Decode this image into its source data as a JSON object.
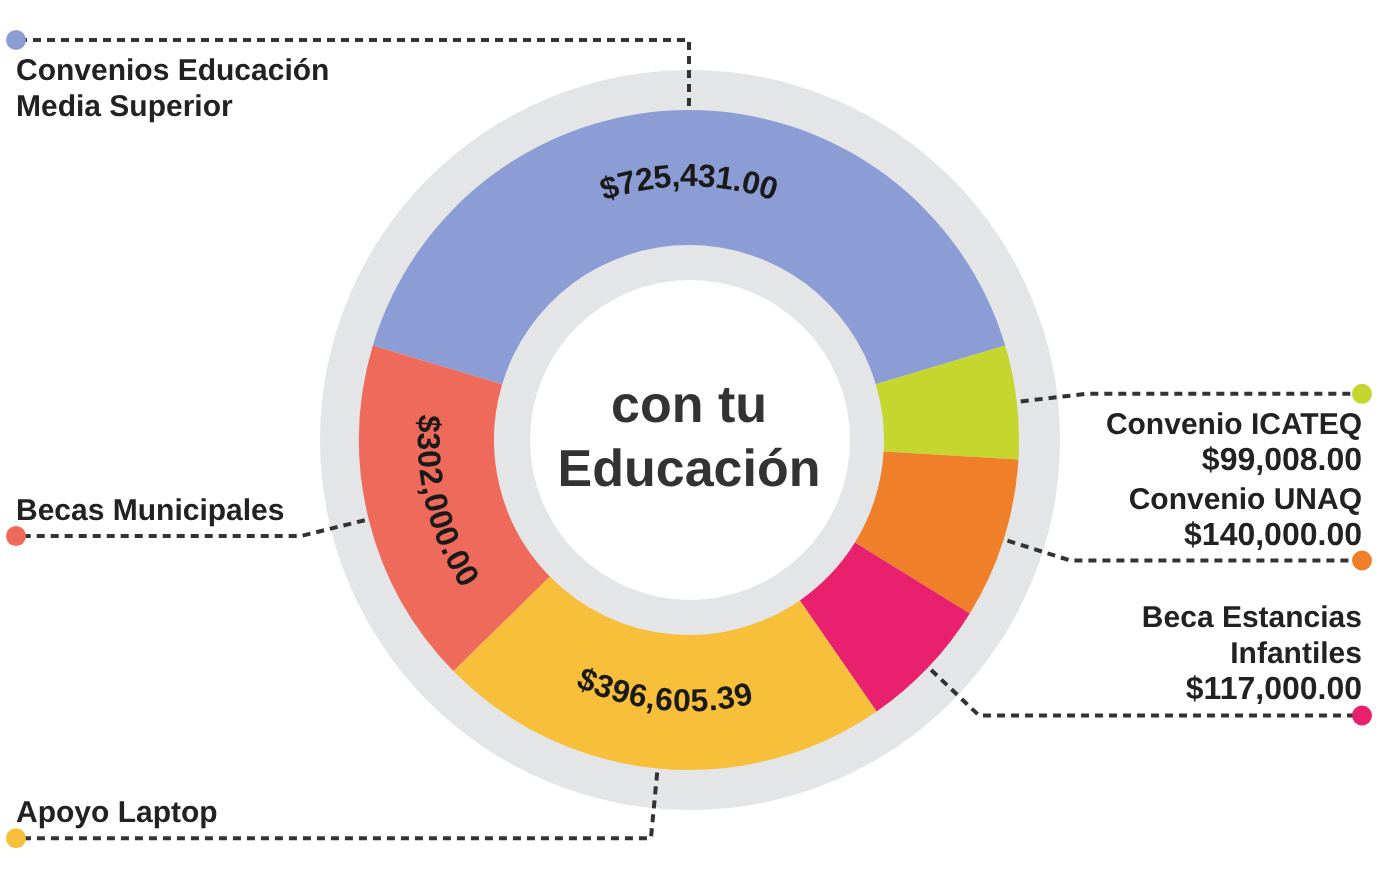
{
  "chart_data": {
    "type": "donut",
    "title": "con tu Educación",
    "categories": [
      "Convenios Educación Media Superior",
      "Convenio ICATEQ",
      "Convenio UNAQ",
      "Beca Estancias Infantiles",
      "Apoyo Laptop",
      "Becas Municipales"
    ],
    "values": [
      725431.0,
      99008.0,
      140000.0,
      117000.0,
      396605.39,
      302000.0
    ],
    "value_labels": [
      "$725,431.00",
      "$99,008.00",
      "$140,000.00",
      "$117,000.00",
      "$396,605.39",
      "$302,000.00"
    ],
    "colors": [
      "#8b9dd4",
      "#c5d62e",
      "#f07f2a",
      "#e8206e",
      "#f8bf3a",
      "#ee6a5a"
    ],
    "legend": "left"
  }
}
